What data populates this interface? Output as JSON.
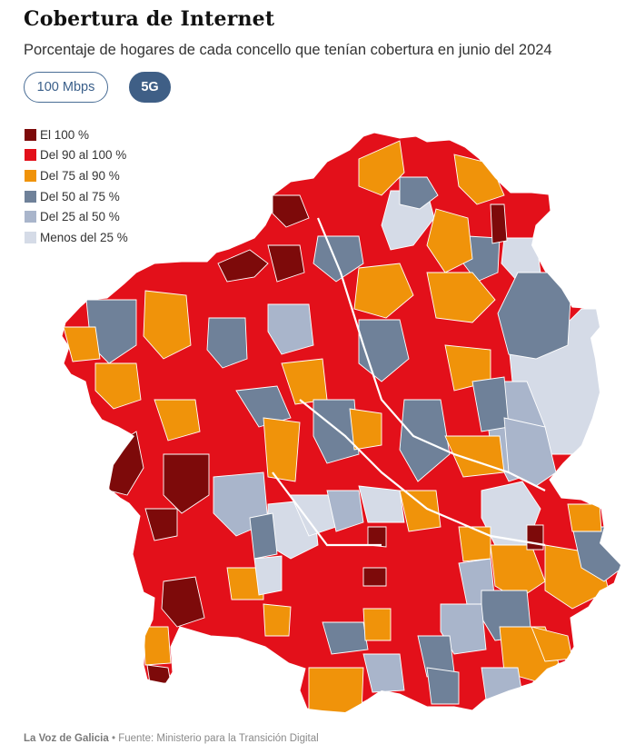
{
  "header": {
    "title": "Cobertura de Internet",
    "subtitle": "Porcentaje de hogares de cada concello que tenían cobertura en junio del 2024"
  },
  "toggle": {
    "option_100mbps": "100 Mbps",
    "option_5g": "5G",
    "selected": "5G"
  },
  "legend": {
    "items": [
      {
        "label": "El 100 %",
        "color": "#7d0a0a"
      },
      {
        "label": "Del 90 al 100 %",
        "color": "#e3101a"
      },
      {
        "label": "Del 75 al 90 %",
        "color": "#f0930a"
      },
      {
        "label": "Del 50 al 75 %",
        "color": "#6f8199"
      },
      {
        "label": "Del 25 al 50 %",
        "color": "#a9b5cb"
      },
      {
        "label": "Menos del 25 %",
        "color": "#d5dbe7"
      }
    ]
  },
  "footer": {
    "brand": "La Voz de Galicia",
    "separator": "•",
    "source": "Fuente: Ministerio para la Transición Digital"
  }
}
